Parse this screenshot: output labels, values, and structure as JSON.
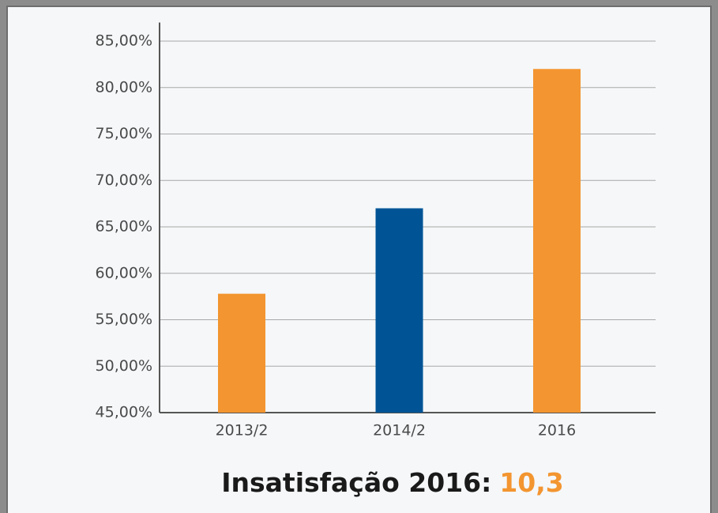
{
  "chart_data": {
    "type": "bar",
    "categories": [
      "2013/2",
      "2014/2",
      "2016"
    ],
    "values": [
      57.8,
      67.0,
      82.0
    ],
    "colors": [
      "#f39530",
      "#005496",
      "#f39530"
    ],
    "ylim": [
      45,
      87
    ],
    "yticks": [
      {
        "value": 45,
        "label": "45,00%"
      },
      {
        "value": 50,
        "label": "50,00%"
      },
      {
        "value": 55,
        "label": "55,00%"
      },
      {
        "value": 60,
        "label": "60,00%"
      },
      {
        "value": 65,
        "label": "65,00%"
      },
      {
        "value": 70,
        "label": "70,00%"
      },
      {
        "value": 75,
        "label": "75,00%"
      },
      {
        "value": 80,
        "label": "80,00%"
      },
      {
        "value": 85,
        "label": "85,00%"
      }
    ],
    "grid": true,
    "annotation": {
      "label": "Insatisfação 2016:",
      "value": "10,3",
      "value_color": "#f39530"
    }
  }
}
